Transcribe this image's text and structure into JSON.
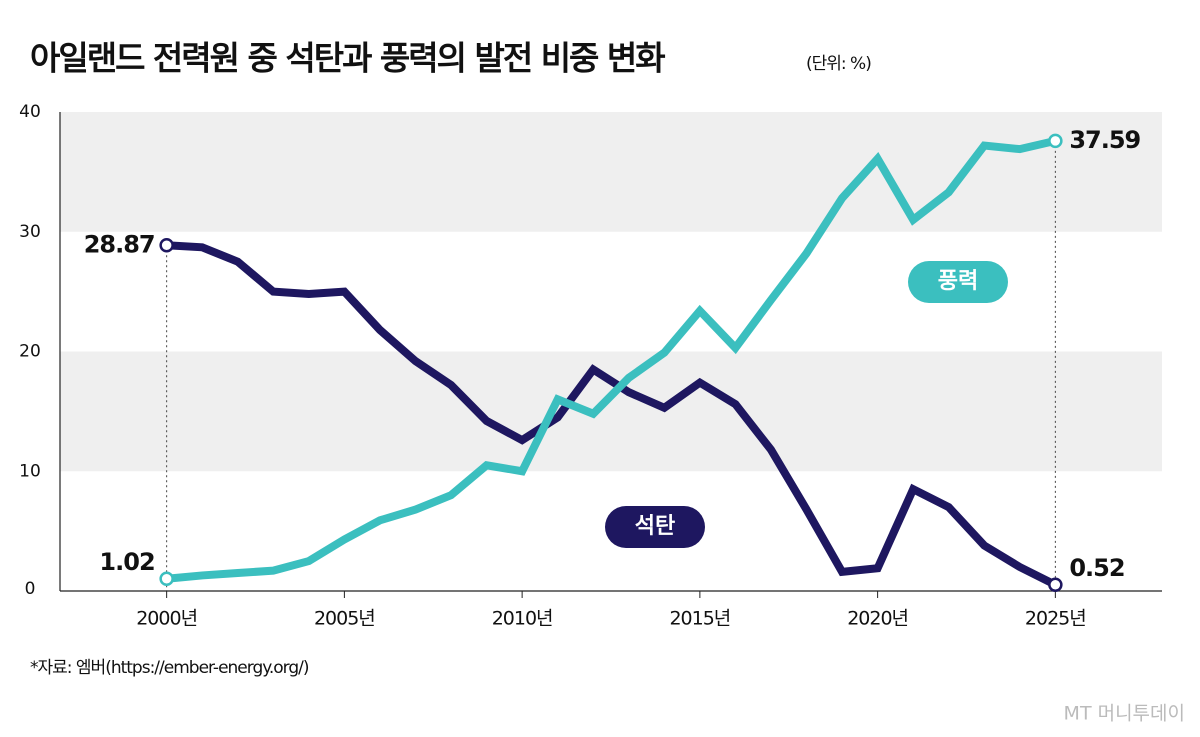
{
  "chart_data": {
    "type": "line",
    "title": "아일랜드 전력원 중 석탄과 풍력의 발전 비중 변화",
    "subtitle": "(단위: %)",
    "source": "*자료: 엠버(https://ember-energy.org/)",
    "credit": "MT 머니투데이",
    "x": [
      2000,
      2001,
      2002,
      2003,
      2004,
      2005,
      2006,
      2007,
      2008,
      2009,
      2010,
      2011,
      2012,
      2013,
      2014,
      2015,
      2016,
      2017,
      2018,
      2019,
      2020,
      2021,
      2022,
      2023,
      2024,
      2025
    ],
    "series": [
      {
        "name": "석탄",
        "color": "#1e1760",
        "values": [
          28.87,
          28.7,
          27.5,
          25.0,
          24.8,
          25.0,
          21.8,
          19.2,
          17.2,
          14.2,
          12.6,
          14.5,
          18.5,
          16.6,
          15.3,
          17.4,
          15.6,
          11.8,
          6.8,
          1.6,
          1.9,
          8.5,
          7.0,
          3.8,
          2.0,
          0.52
        ]
      },
      {
        "name": "풍력",
        "color": "#3bbfbf",
        "values": [
          1.02,
          1.3,
          1.5,
          1.7,
          2.5,
          4.3,
          5.9,
          6.8,
          8.0,
          10.5,
          10.0,
          16.0,
          14.8,
          17.8,
          19.9,
          23.4,
          20.3,
          24.3,
          28.2,
          32.8,
          36.1,
          31.0,
          33.3,
          37.2,
          36.9,
          37.59
        ]
      }
    ],
    "xlim": [
      1997,
      2028
    ],
    "xticks": [
      {
        "value": 2000,
        "label": "2000년"
      },
      {
        "value": 2005,
        "label": "2005년"
      },
      {
        "value": 2010,
        "label": "2010년"
      },
      {
        "value": 2015,
        "label": "2015년"
      },
      {
        "value": 2020,
        "label": "2020년"
      },
      {
        "value": 2025,
        "label": "2025년"
      }
    ],
    "ylim": [
      0,
      40
    ],
    "yticks": [
      0,
      10,
      20,
      30,
      40
    ]
  }
}
